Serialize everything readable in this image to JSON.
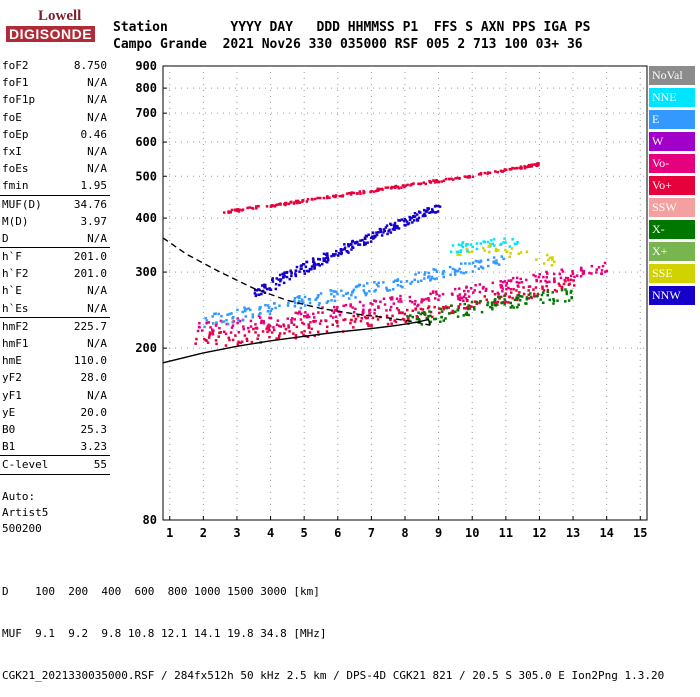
{
  "logo": {
    "lowell": "Lowell",
    "digisonde": "DIGISONDE"
  },
  "header": {
    "line1": "Station        YYYY DAY   DDD HHMMSS P1  FFS S AXN PPS IGA PS",
    "line2": "Campo Grande  2021 Nov26 330 035000 RSF 005 2 713 100 03+ 36"
  },
  "params": [
    {
      "label": "foF2",
      "value": "8.750"
    },
    {
      "label": "foF1",
      "value": "N/A"
    },
    {
      "label": "foF1p",
      "value": "N/A"
    },
    {
      "label": "foE",
      "value": "N/A"
    },
    {
      "label": "foEp",
      "value": "0.46"
    },
    {
      "label": "fxI",
      "value": "N/A"
    },
    {
      "label": "foEs",
      "value": "N/A"
    },
    {
      "label": "fmin",
      "value": "1.95"
    },
    {
      "sep": true
    },
    {
      "label": "MUF(D)",
      "value": "34.76"
    },
    {
      "label": "M(D)",
      "value": "3.97"
    },
    {
      "label": "D",
      "value": "N/A"
    },
    {
      "sep": true
    },
    {
      "label": "h`F",
      "value": "201.0"
    },
    {
      "label": "h`F2",
      "value": "201.0"
    },
    {
      "label": "h`E",
      "value": "N/A"
    },
    {
      "label": "h`Es",
      "value": "N/A"
    },
    {
      "sep": true
    },
    {
      "label": "hmF2",
      "value": "225.7"
    },
    {
      "label": "hmF1",
      "value": "N/A"
    },
    {
      "label": "hmE",
      "value": "110.0"
    },
    {
      "label": "yF2",
      "value": "28.0"
    },
    {
      "label": "yF1",
      "value": "N/A"
    },
    {
      "label": "yE",
      "value": "20.0"
    },
    {
      "label": "B0",
      "value": "25.3"
    },
    {
      "label": "B1",
      "value": "3.23"
    },
    {
      "sep": true
    },
    {
      "label": "C-level",
      "value": "55"
    },
    {
      "sep": true
    }
  ],
  "notes": [
    "Auto:",
    "Artist5",
    "500200"
  ],
  "legend": [
    {
      "label": "NoVal",
      "color": "#8c8c8c"
    },
    {
      "label": "NNE",
      "color": "#00e5ff"
    },
    {
      "label": "E",
      "color": "#3399ff"
    },
    {
      "label": "W",
      "color": "#a000c8"
    },
    {
      "label": "Vo-",
      "color": "#e6007e"
    },
    {
      "label": "Vo+",
      "color": "#e6003c"
    },
    {
      "label": "SSW",
      "color": "#f5a0a0"
    },
    {
      "label": "X-",
      "color": "#007800"
    },
    {
      "label": "X+",
      "color": "#78b450"
    },
    {
      "label": "SSE",
      "color": "#d2d200"
    },
    {
      "label": "NNW",
      "color": "#1400c8"
    }
  ],
  "footer": {
    "line1": "D    100  200  400  600  800 1000 1500 3000 [km]",
    "line2": "MUF  9.1  9.2  9.8 10.8 12.1 14.1 19.8 34.8 [MHz]",
    "line3": "CGK21_2021330035000.RSF / 284fx512h 50 kHz 2.5 km / DPS-4D CGK21 821 / 20.5 S 305.0 E Ion2Png 1.3.20"
  },
  "chart_data": {
    "type": "scatter",
    "title": "",
    "xlabel": "",
    "ylabel": "",
    "xlim": [
      0.8,
      15.2
    ],
    "ylim": [
      80,
      900
    ],
    "y_log": true,
    "xticks": [
      1,
      2,
      3,
      4,
      5,
      6,
      7,
      8,
      9,
      10,
      11,
      12,
      13,
      14,
      15
    ],
    "yticks": [
      80,
      200,
      300,
      400,
      500,
      600,
      700,
      800,
      900
    ],
    "grid": true,
    "legend_position": "right",
    "series": [
      {
        "name": "Vo+",
        "values": [
          [
            1.7,
            210
          ],
          [
            3,
            213
          ],
          [
            4,
            218
          ],
          [
            5,
            222
          ],
          [
            6,
            228
          ],
          [
            7,
            234
          ],
          [
            8,
            240
          ],
          [
            9,
            247
          ],
          [
            10,
            255
          ],
          [
            11,
            265
          ],
          [
            12,
            275
          ],
          [
            13,
            288
          ]
        ]
      },
      {
        "name": "Vo-",
        "values": [
          [
            1.8,
            222
          ],
          [
            3,
            228
          ],
          [
            4,
            233
          ],
          [
            5,
            238
          ],
          [
            6,
            245
          ],
          [
            7,
            252
          ],
          [
            8,
            258
          ],
          [
            9,
            265
          ],
          [
            10,
            272
          ],
          [
            11,
            282
          ],
          [
            12,
            292
          ],
          [
            13,
            300
          ],
          [
            14,
            310
          ]
        ]
      },
      {
        "name": "E",
        "values": [
          [
            2,
            230
          ],
          [
            3,
            240
          ],
          [
            4,
            248
          ],
          [
            5,
            258
          ],
          [
            6,
            268
          ],
          [
            7,
            278
          ],
          [
            8,
            288
          ],
          [
            9,
            300
          ],
          [
            10,
            312
          ],
          [
            11,
            322
          ]
        ]
      },
      {
        "name": "NNE",
        "values": [
          [
            9.3,
            340
          ],
          [
            9.7,
            345
          ],
          [
            10.2,
            348
          ],
          [
            10.8,
            352
          ],
          [
            11.3,
            355
          ]
        ]
      },
      {
        "name": "NNW",
        "values": [
          [
            3.5,
            270
          ],
          [
            4,
            282
          ],
          [
            4.5,
            295
          ],
          [
            5,
            310
          ],
          [
            5.5,
            322
          ],
          [
            6,
            338
          ],
          [
            6.5,
            350
          ],
          [
            7,
            365
          ],
          [
            7.5,
            380
          ],
          [
            8,
            395
          ],
          [
            8.5,
            412
          ],
          [
            9,
            425
          ]
        ]
      },
      {
        "name": "X-",
        "values": [
          [
            8,
            232
          ],
          [
            9,
            240
          ],
          [
            10,
            250
          ],
          [
            11,
            258
          ],
          [
            12,
            262
          ],
          [
            13,
            268
          ]
        ]
      },
      {
        "name": "SSE",
        "values": [
          [
            9.5,
            335
          ],
          [
            10.5,
            345
          ],
          [
            11.5,
            330
          ],
          [
            12.5,
            320
          ]
        ]
      },
      {
        "name": "Vo+ (2nd hop)",
        "values": [
          [
            2.5,
            415
          ],
          [
            3.5,
            425
          ],
          [
            4.5,
            435
          ],
          [
            5.5,
            448
          ],
          [
            6.5,
            460
          ],
          [
            7.5,
            472
          ],
          [
            8.5,
            485
          ],
          [
            9.5,
            498
          ],
          [
            10.5,
            512
          ],
          [
            11.5,
            528
          ],
          [
            12,
            538
          ]
        ]
      }
    ],
    "lines": [
      {
        "name": "true height profile",
        "style": "dashed",
        "values": [
          [
            0.8,
            360
          ],
          [
            1.5,
            330
          ],
          [
            2.5,
            300
          ],
          [
            3.5,
            275
          ],
          [
            4.5,
            258
          ],
          [
            5.5,
            247
          ],
          [
            6.5,
            240
          ],
          [
            7.5,
            235
          ],
          [
            8.3,
            230
          ],
          [
            8.75,
            226
          ]
        ]
      },
      {
        "name": "virtual height trace",
        "style": "solid",
        "values": [
          [
            0.8,
            185
          ],
          [
            2,
            195
          ],
          [
            3,
            202
          ],
          [
            4,
            208
          ],
          [
            5,
            213
          ],
          [
            6,
            218
          ],
          [
            7,
            222
          ],
          [
            7.8,
            226
          ],
          [
            8.4,
            230
          ],
          [
            8.7,
            233
          ],
          [
            8.75,
            226
          ]
        ]
      }
    ]
  }
}
